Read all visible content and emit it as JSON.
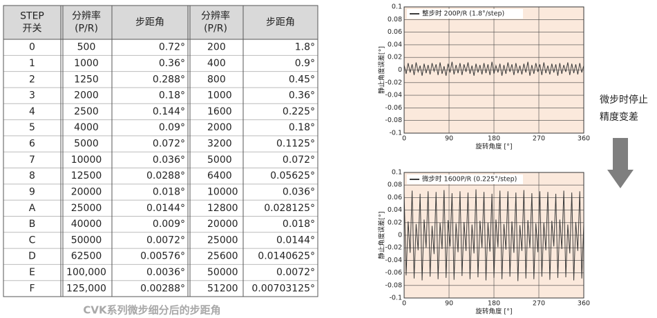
{
  "table": {
    "header": [
      [
        "STEP",
        "开关"
      ],
      [
        "分辨率",
        "(P/R)"
      ],
      [
        "步距角"
      ],
      [
        "分辨率",
        "(P/R)"
      ],
      [
        "步距角"
      ]
    ],
    "rows": [
      [
        "0",
        "500",
        "0.72°",
        "200",
        "1.8°"
      ],
      [
        "1",
        "1000",
        "0.36°",
        "400",
        "0.9°"
      ],
      [
        "2",
        "1250",
        "0.288°",
        "800",
        "0.45°"
      ],
      [
        "3",
        "2000",
        "0.18°",
        "1000",
        "0.36°"
      ],
      [
        "4",
        "2500",
        "0.144°",
        "1600",
        "0.225°"
      ],
      [
        "5",
        "4000",
        "0.09°",
        "2000",
        "0.18°"
      ],
      [
        "6",
        "5000",
        "0.072°",
        "3200",
        "0.1125°"
      ],
      [
        "7",
        "10000",
        "0.036°",
        "5000",
        "0.072°"
      ],
      [
        "8",
        "12500",
        "0.0288°",
        "6400",
        "0.05625°"
      ],
      [
        "9",
        "20000",
        "0.018°",
        "10000",
        "0.036°"
      ],
      [
        "A",
        "25000",
        "0.0144°",
        "12800",
        "0.028125°"
      ],
      [
        "B",
        "40000",
        "0.009°",
        "20000",
        "0.018°"
      ],
      [
        "C",
        "50000",
        "0.0072°",
        "25000",
        "0.0144°"
      ],
      [
        "D",
        "62500",
        "0.00576°",
        "25600",
        "0.0140625°"
      ],
      [
        "E",
        "100,000",
        "0.0036°",
        "50000",
        "0.0072°"
      ],
      [
        "F",
        "125,000",
        "0.00288°",
        "51200",
        "0.00703125°"
      ]
    ],
    "caption": "CVK系列微步细分后的步距角"
  },
  "annotation": [
    "微步时停止",
    "精度变差"
  ],
  "chart_data": [
    {
      "type": "line",
      "xlabel": "旋转角度 [°]",
      "ylabel": "静止角度误差[°]",
      "xlim": [
        0,
        360
      ],
      "ylim": [
        -0.1,
        0.1
      ],
      "xticks": [
        0,
        90,
        180,
        270,
        360
      ],
      "yticks": [
        0.1,
        0.08,
        0.06,
        0.04,
        0.02,
        0,
        -0.02,
        -0.04,
        -0.06,
        -0.08,
        -0.1
      ],
      "grid": true,
      "plot_background": "#fbe9dc",
      "x": [
        0,
        4,
        8,
        12,
        16,
        20,
        24,
        28,
        32,
        36,
        40,
        44,
        48,
        52,
        56,
        60,
        64,
        68,
        72,
        76,
        80,
        84,
        88,
        92,
        96,
        100,
        104,
        108,
        112,
        116,
        120,
        124,
        128,
        132,
        136,
        140,
        144,
        148,
        152,
        156,
        160,
        164,
        168,
        172,
        176,
        180,
        184,
        188,
        192,
        196,
        200,
        204,
        208,
        212,
        216,
        220,
        224,
        228,
        232,
        236,
        240,
        244,
        248,
        252,
        256,
        260,
        264,
        268,
        272,
        276,
        280,
        284,
        288,
        292,
        296,
        300,
        304,
        308,
        312,
        316,
        320,
        324,
        328,
        332,
        336,
        340,
        344,
        348,
        352,
        356,
        360
      ],
      "series": [
        {
          "name": "整步时 200P/R (1.8°/step)",
          "color": "#3a3a3a",
          "values": [
            0.008,
            -0.006,
            0.011,
            -0.004,
            0.009,
            -0.008,
            0.012,
            -0.003,
            0.007,
            -0.009,
            0.01,
            -0.005,
            0.008,
            -0.007,
            0.011,
            -0.002,
            0.009,
            -0.008,
            0.012,
            -0.006,
            0.006,
            -0.009,
            0.01,
            -0.004,
            0.013,
            -0.007,
            0.008,
            -0.005,
            0.011,
            -0.008,
            0.009,
            -0.003,
            0.012,
            -0.006,
            0.007,
            -0.009,
            0.01,
            -0.004,
            0.008,
            -0.007,
            0.011,
            -0.005,
            0.009,
            -0.008,
            0.013,
            -0.006,
            0.007,
            -0.004,
            0.01,
            -0.009,
            0.008,
            -0.006,
            0.012,
            -0.003,
            0.009,
            -0.008,
            0.011,
            -0.005,
            0.007,
            -0.007,
            0.01,
            -0.004,
            0.013,
            -0.009,
            0.008,
            -0.006,
            0.011,
            -0.003,
            0.009,
            -0.008,
            0.012,
            -0.005,
            0.007,
            -0.007,
            0.01,
            -0.004,
            0.009,
            -0.009,
            0.011,
            -0.006,
            0.008,
            -0.003,
            0.012,
            -0.008,
            0.01,
            -0.005,
            0.009,
            -0.007,
            0.011,
            -0.004,
            0.007
          ]
        }
      ]
    },
    {
      "type": "line",
      "xlabel": "旋转角度 [°]",
      "ylabel": "静止角度误差[°]",
      "xlim": [
        0,
        360
      ],
      "ylim": [
        -0.1,
        0.1
      ],
      "xticks": [
        0,
        90,
        180,
        270,
        360
      ],
      "yticks": [
        0.1,
        0.08,
        0.06,
        0.04,
        0.02,
        0,
        -0.02,
        -0.04,
        -0.06,
        -0.08,
        -0.1
      ],
      "grid": true,
      "plot_background": "#fbe9dc",
      "x": [
        0,
        4,
        8,
        12,
        16,
        20,
        24,
        28,
        32,
        36,
        40,
        44,
        48,
        52,
        56,
        60,
        64,
        68,
        72,
        76,
        80,
        84,
        88,
        92,
        96,
        100,
        104,
        108,
        112,
        116,
        120,
        124,
        128,
        132,
        136,
        140,
        144,
        148,
        152,
        156,
        160,
        164,
        168,
        172,
        176,
        180,
        184,
        188,
        192,
        196,
        200,
        204,
        208,
        212,
        216,
        220,
        224,
        228,
        232,
        236,
        240,
        244,
        248,
        252,
        256,
        260,
        264,
        268,
        272,
        276,
        280,
        284,
        288,
        292,
        296,
        300,
        304,
        308,
        312,
        316,
        320,
        324,
        328,
        332,
        336,
        340,
        344,
        348,
        352,
        356,
        360
      ],
      "series": [
        {
          "name": "微步时 1600P/R (0.225°/step)",
          "color": "#3a3a3a",
          "values": [
            0.068,
            -0.064,
            0.022,
            -0.028,
            0.071,
            -0.069,
            0.018,
            -0.024,
            0.066,
            -0.072,
            0.025,
            -0.02,
            0.07,
            -0.066,
            0.015,
            -0.03,
            0.069,
            -0.07,
            0.02,
            -0.022,
            0.072,
            -0.068,
            0.024,
            -0.018,
            0.067,
            -0.071,
            0.019,
            -0.027,
            0.07,
            -0.065,
            0.021,
            -0.025,
            0.068,
            -0.07,
            0.017,
            -0.029,
            0.073,
            -0.067,
            0.023,
            -0.02,
            0.069,
            -0.072,
            0.02,
            -0.026,
            0.066,
            -0.068,
            0.025,
            -0.019,
            0.071,
            -0.07,
            0.018,
            -0.023,
            0.07,
            -0.066,
            0.022,
            -0.028,
            0.068,
            -0.073,
            0.016,
            -0.025,
            0.072,
            -0.069,
            0.024,
            -0.02,
            0.067,
            -0.07,
            0.019,
            -0.027,
            0.07,
            -0.066,
            0.02,
            -0.024,
            0.069,
            -0.071,
            0.023,
            -0.018,
            0.066,
            -0.068,
            0.025,
            -0.022,
            0.071,
            -0.067,
            0.017,
            -0.029,
            0.068,
            -0.072,
            0.021,
            -0.025,
            0.07,
            -0.069,
            0.019
          ]
        }
      ]
    }
  ]
}
